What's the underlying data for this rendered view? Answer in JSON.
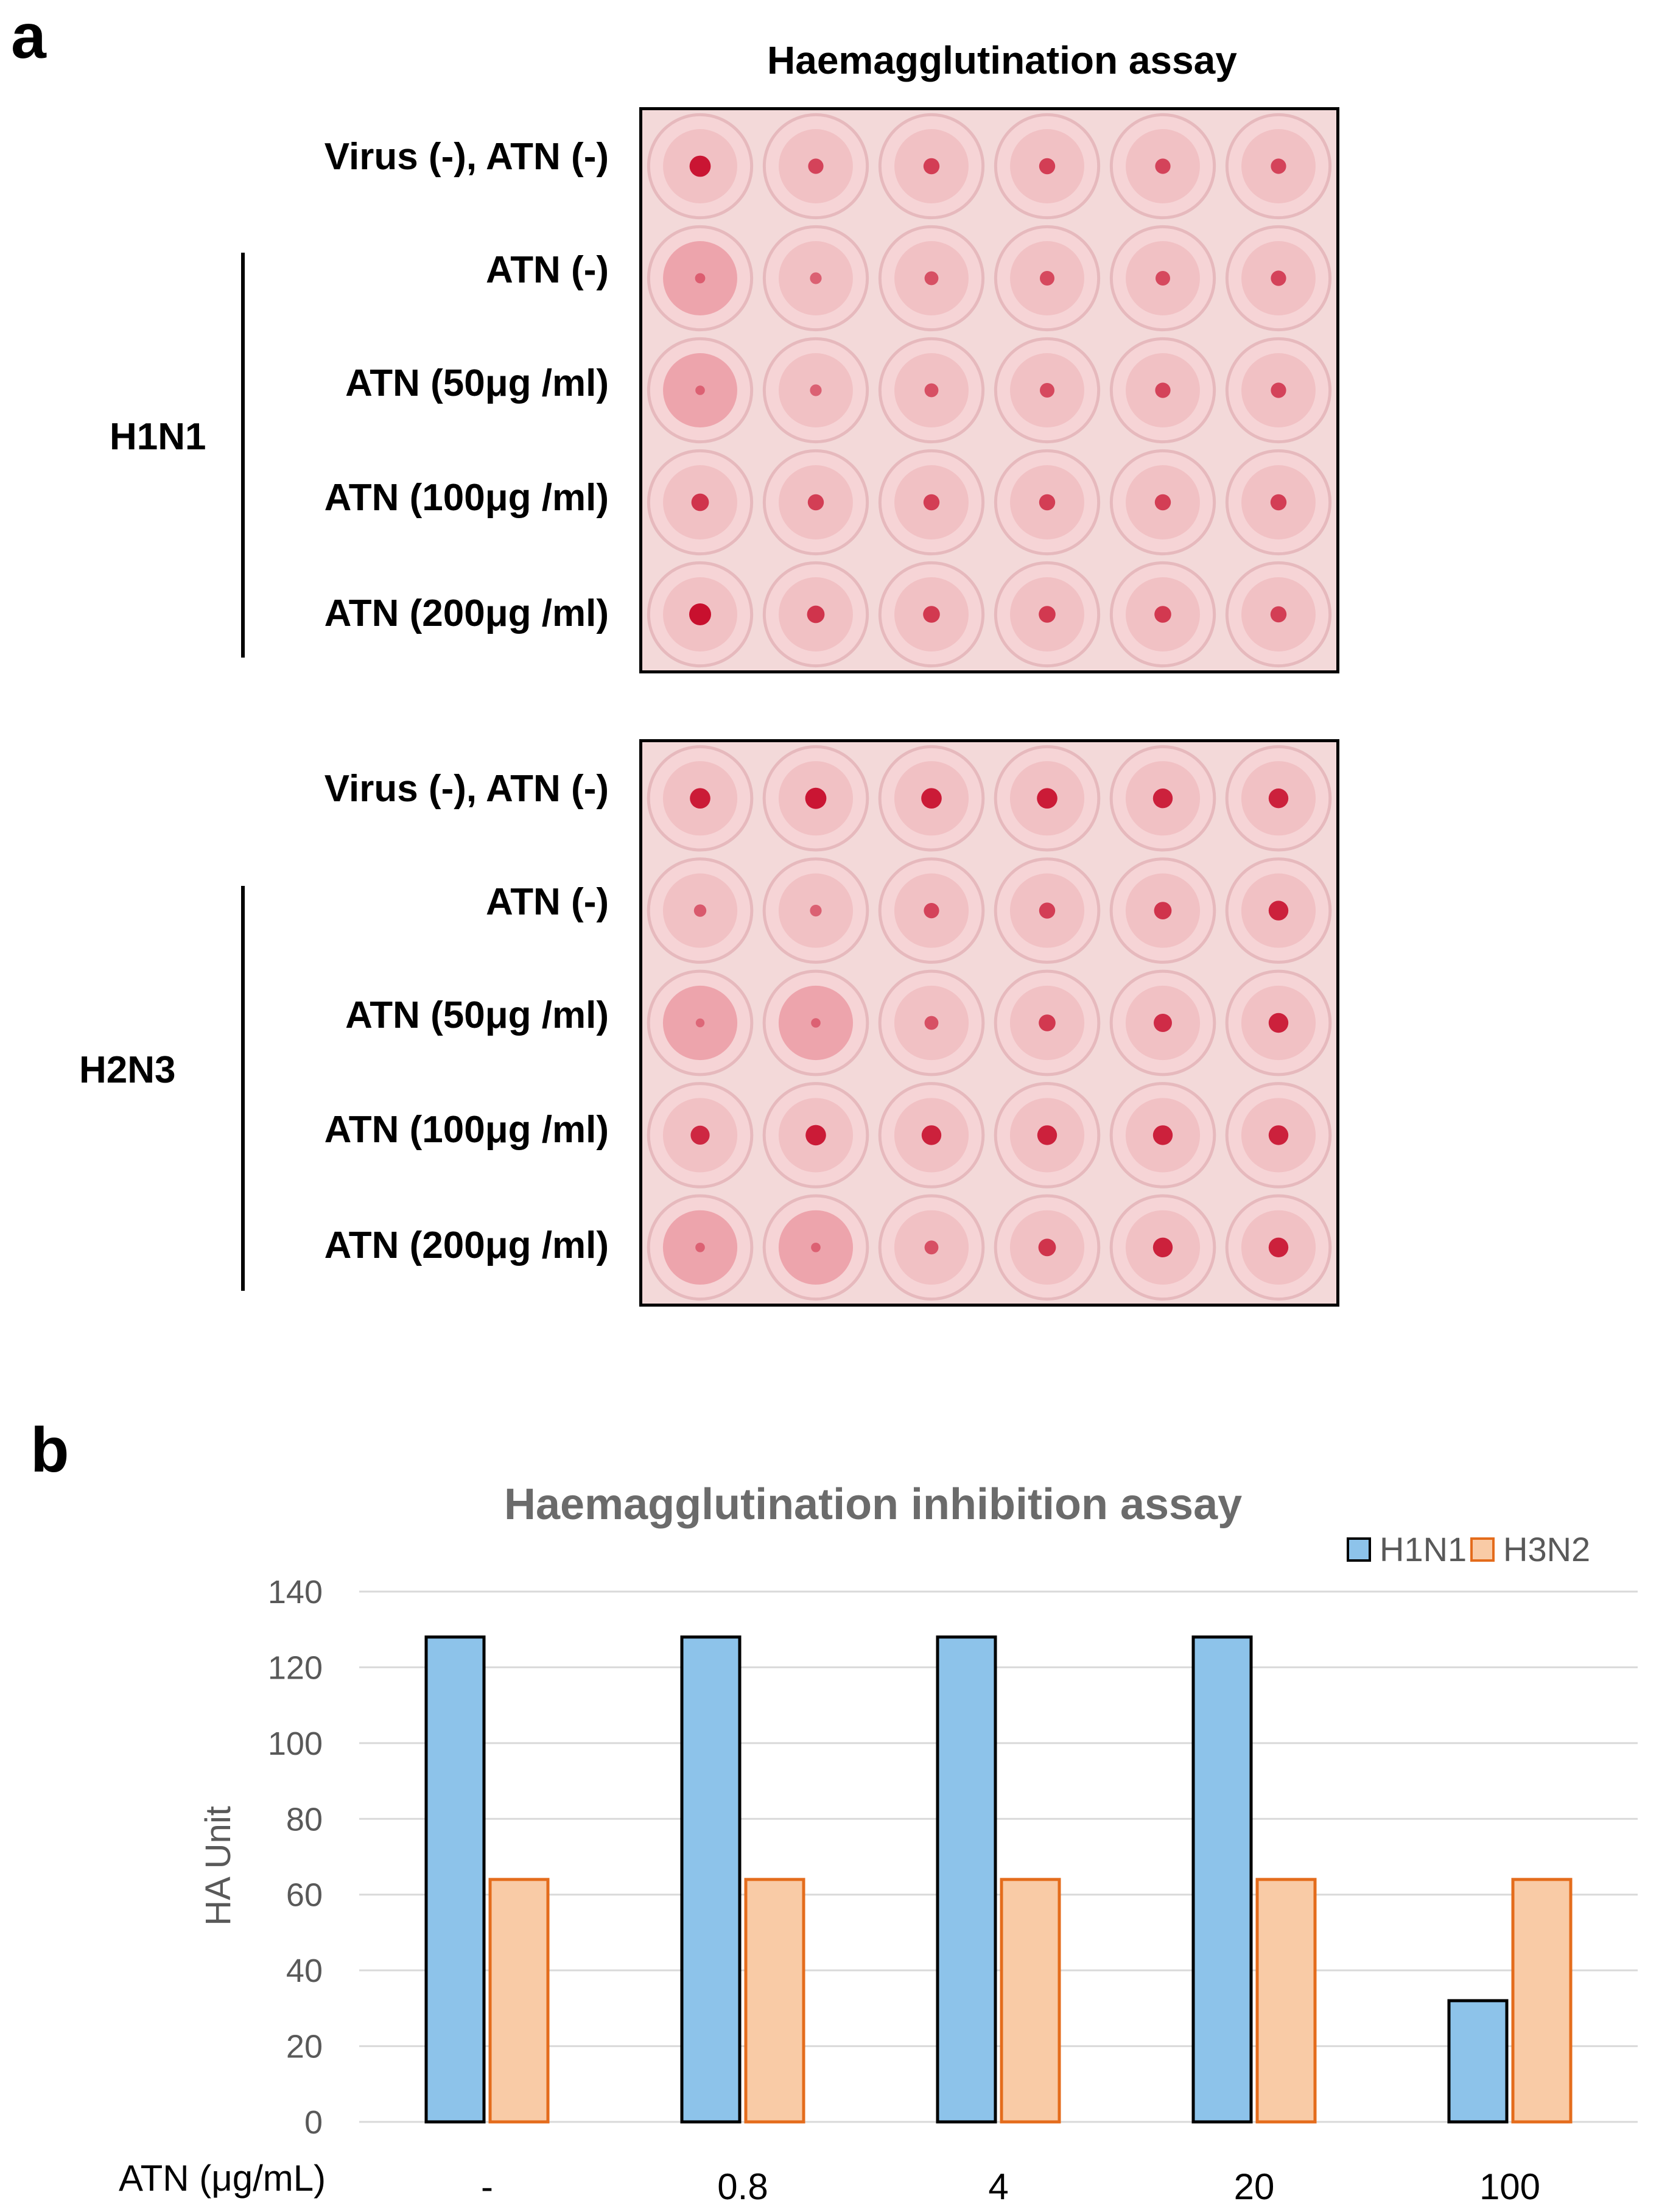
{
  "panel_a": {
    "letter": "a",
    "title": "Haemagglutination assay",
    "plates": [
      {
        "group": "H1N1",
        "rows": [
          "Virus (-), ATN (-)",
          "ATN (-)",
          "ATN (50μg /ml)",
          "ATN (100μg /ml)",
          "ATN (200μg /ml)"
        ]
      },
      {
        "group": "H2N3",
        "rows": [
          "Virus (-), ATN (-)",
          "ATN (-)",
          "ATN (50μg /ml)",
          "ATN (100μg /ml)",
          "ATN (200μg /ml)"
        ]
      }
    ]
  },
  "panel_b": {
    "letter": "b"
  },
  "colors": {
    "h1n1_fill": "#8dc3ea",
    "h1n1_stroke": "#000000",
    "h3n2_fill": "#f9cba6",
    "h3n2_stroke": "#e46c1c",
    "gridline": "#d9d9d9",
    "axis_text": "#595959"
  },
  "chart_data": {
    "type": "bar",
    "title": "Haemagglutination inhibition assay",
    "xlabel": "ATN  (μg/mL)",
    "ylabel": "HA Unit",
    "categories": [
      "-",
      "0.8",
      "4",
      "20",
      "100"
    ],
    "series": [
      {
        "name": "H1N1",
        "values": [
          128,
          128,
          128,
          128,
          32
        ]
      },
      {
        "name": "H3N2",
        "values": [
          64,
          64,
          64,
          64,
          64
        ]
      }
    ],
    "ylim": [
      0,
      140
    ],
    "yticks": [
      "0",
      "20",
      "40",
      "60",
      "80",
      "100",
      "120",
      "140"
    ],
    "grid": true,
    "legend": "top-right"
  }
}
